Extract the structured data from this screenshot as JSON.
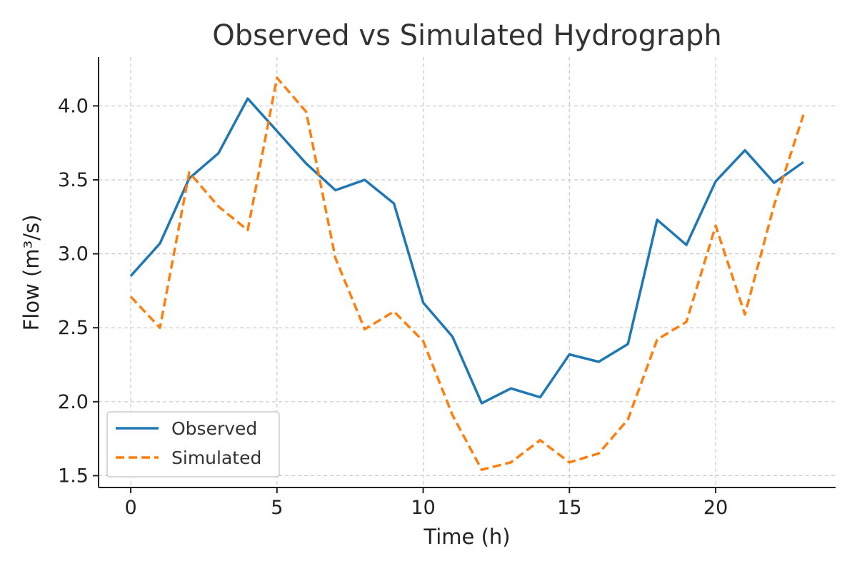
{
  "chart_data": {
    "type": "line",
    "title": "Observed vs Simulated Hydrograph",
    "xlabel": "Time (h)",
    "ylabel": "Flow (m³/s)",
    "xlim": [
      -1.1,
      24.1
    ],
    "ylim": [
      1.42,
      4.33
    ],
    "xticks": [
      0,
      5,
      10,
      15,
      20
    ],
    "xtick_labels": [
      "0",
      "5",
      "10",
      "15",
      "20"
    ],
    "yticks": [
      1.5,
      2.0,
      2.5,
      3.0,
      3.5,
      4.0
    ],
    "ytick_labels": [
      "1.5",
      "2.0",
      "2.5",
      "3.0",
      "3.5",
      "4.0"
    ],
    "grid": true,
    "legend_position": "lower-left",
    "x": [
      0,
      1,
      2,
      3,
      4,
      5,
      6,
      7,
      8,
      9,
      10,
      11,
      12,
      13,
      14,
      15,
      16,
      17,
      18,
      19,
      20,
      21,
      22,
      23
    ],
    "series": [
      {
        "name": "Observed",
        "style": "solid",
        "color": "#1f77b4",
        "values": [
          2.85,
          3.07,
          3.51,
          3.68,
          4.05,
          3.83,
          3.61,
          3.43,
          3.5,
          3.34,
          2.67,
          2.44,
          1.99,
          2.09,
          2.03,
          2.32,
          2.27,
          2.39,
          3.23,
          3.06,
          3.49,
          3.7,
          3.48,
          3.62
        ]
      },
      {
        "name": "Simulated",
        "style": "dashed",
        "color": "#ff7f0e",
        "values": [
          2.71,
          2.5,
          3.55,
          3.32,
          3.16,
          4.19,
          3.96,
          2.97,
          2.49,
          2.61,
          2.41,
          1.91,
          1.54,
          1.59,
          1.74,
          1.59,
          1.65,
          1.88,
          2.42,
          2.54,
          3.19,
          2.59,
          3.33,
          3.94
        ]
      }
    ]
  }
}
